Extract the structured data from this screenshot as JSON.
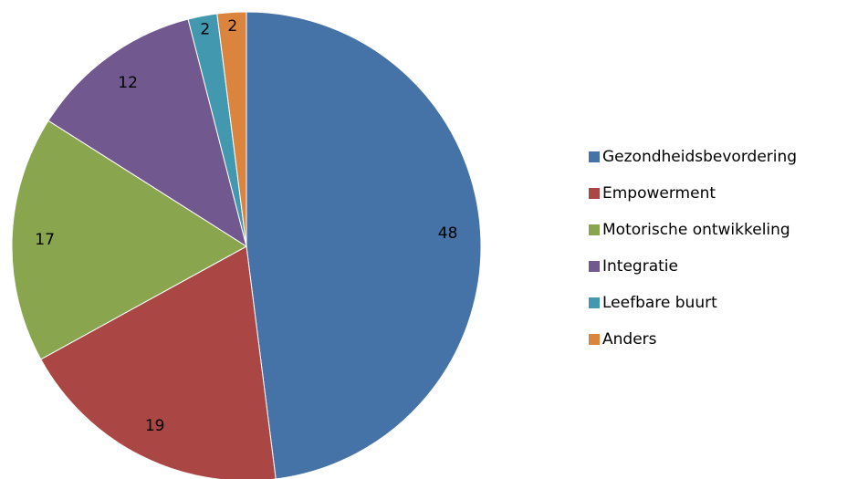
{
  "chart_data": {
    "type": "pie",
    "categories": [
      "Gezondheidsbevordering",
      "Empowerment",
      "Motorische ontwikkeling",
      "Integratie",
      "Leefbare buurt",
      "Anders"
    ],
    "values": [
      48,
      19,
      17,
      12,
      2,
      2
    ],
    "colors": [
      "#4572a7",
      "#aa4643",
      "#89a54e",
      "#71588f",
      "#4198af",
      "#db843d"
    ],
    "legend": "right"
  }
}
